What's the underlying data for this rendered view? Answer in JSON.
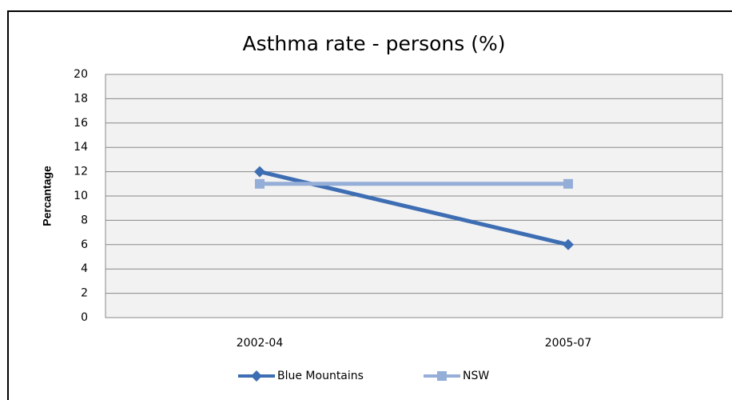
{
  "chart_data": {
    "type": "line",
    "title": "Asthma rate -  persons (%)",
    "y_label": "Percantage",
    "categories": [
      "2002-04",
      "2005-07"
    ],
    "series": [
      {
        "name": "Blue Mountains",
        "color": "#3d6db3",
        "marker": "diamond",
        "values": [
          12,
          6
        ]
      },
      {
        "name": "NSW",
        "color": "#95aed8",
        "marker": "square",
        "values": [
          11,
          11
        ]
      }
    ],
    "ylim": [
      0,
      20
    ],
    "yticks": [
      0,
      2,
      4,
      6,
      8,
      10,
      12,
      14,
      16,
      18,
      20
    ],
    "grid": true,
    "legend": "bottom"
  }
}
